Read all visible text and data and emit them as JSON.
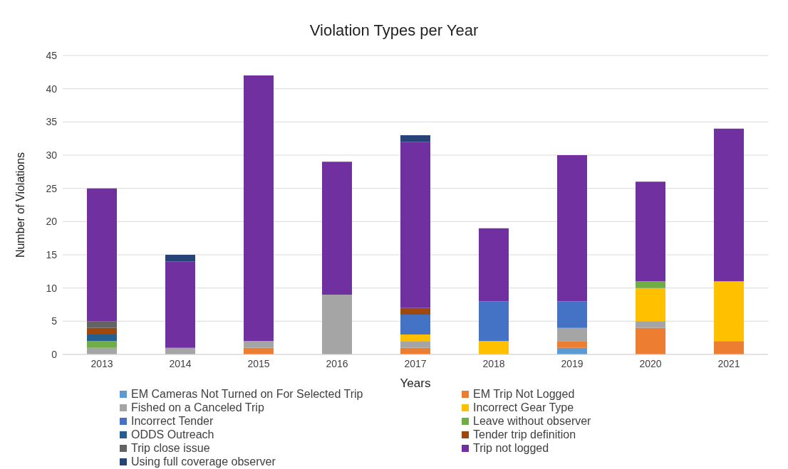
{
  "chart_data": {
    "type": "bar",
    "title": "Violation Types per Year",
    "xlabel": "Years",
    "ylabel": "Number of Violations",
    "stacked": true,
    "grid": "y",
    "legend": "bottom",
    "categories": [
      "2013",
      "2014",
      "2015",
      "2016",
      "2017",
      "2018",
      "2019",
      "2020",
      "2021"
    ],
    "ylim": [
      0,
      45
    ],
    "yticks": [
      0,
      5,
      10,
      15,
      20,
      25,
      30,
      35,
      40,
      45
    ],
    "series": [
      {
        "name": "EM Cameras Not Turned on For Selected Trip",
        "color": "#5b9bd5",
        "values": [
          0,
          0,
          0,
          0,
          0,
          0,
          1,
          0,
          0
        ]
      },
      {
        "name": "EM Trip Not Logged",
        "color": "#ed7d31",
        "values": [
          0,
          0,
          1,
          0,
          1,
          0,
          1,
          4,
          2
        ]
      },
      {
        "name": "Fished on a Canceled Trip",
        "color": "#a5a5a5",
        "values": [
          1,
          1,
          1,
          9,
          1,
          0,
          2,
          1,
          0
        ]
      },
      {
        "name": "Incorrect Gear Type",
        "color": "#ffc000",
        "values": [
          0,
          0,
          0,
          0,
          1,
          2,
          0,
          5,
          9
        ]
      },
      {
        "name": "Incorrect Tender",
        "color": "#4472c4",
        "values": [
          0,
          0,
          0,
          0,
          3,
          6,
          4,
          0,
          0
        ]
      },
      {
        "name": "Leave without observer",
        "color": "#70ad47",
        "values": [
          1,
          0,
          0,
          0,
          0,
          0,
          0,
          1,
          0
        ]
      },
      {
        "name": "ODDS Outreach",
        "color": "#255e91",
        "values": [
          1,
          0,
          0,
          0,
          0,
          0,
          0,
          0,
          0
        ]
      },
      {
        "name": "Tender trip definition",
        "color": "#9e480e",
        "values": [
          1,
          0,
          0,
          0,
          1,
          0,
          0,
          0,
          0
        ]
      },
      {
        "name": "Trip close issue",
        "color": "#636363",
        "values": [
          1,
          0,
          0,
          0,
          0,
          0,
          0,
          0,
          0
        ]
      },
      {
        "name": "Trip not logged",
        "color": "#7030a0",
        "values": [
          20,
          13,
          40,
          20,
          25,
          11,
          22,
          15,
          23
        ]
      },
      {
        "name": "Using full coverage observer",
        "color": "#264478",
        "values": [
          0,
          1,
          0,
          0,
          1,
          0,
          0,
          0,
          0
        ]
      }
    ]
  }
}
